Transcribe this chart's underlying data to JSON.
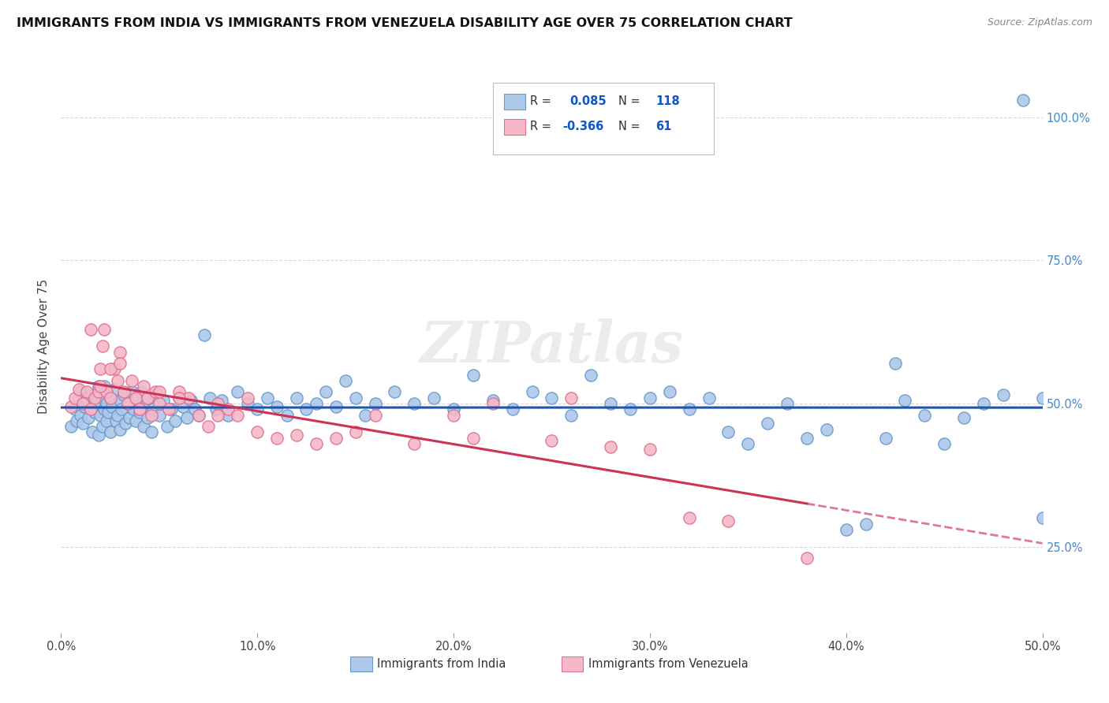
{
  "title": "IMMIGRANTS FROM INDIA VS IMMIGRANTS FROM VENEZUELA DISABILITY AGE OVER 75 CORRELATION CHART",
  "source": "Source: ZipAtlas.com",
  "ylabel": "Disability Age Over 75",
  "xlim": [
    0.0,
    0.5
  ],
  "ylim": [
    0.1,
    1.1
  ],
  "xtick_vals": [
    0.0,
    0.1,
    0.2,
    0.3,
    0.4,
    0.5
  ],
  "ytick_right_labels": [
    "25.0%",
    "50.0%",
    "75.0%",
    "100.0%"
  ],
  "ytick_right_vals": [
    0.25,
    0.5,
    0.75,
    1.0
  ],
  "india_color": "#adc8e8",
  "india_edge_color": "#6699cc",
  "venezuela_color": "#f5b8c8",
  "venezuela_edge_color": "#e07090",
  "trend_india_color": "#2255aa",
  "trend_venezuela_color": "#cc3355",
  "background_color": "#ffffff",
  "grid_color": "#d8d8d8",
  "title_fontsize": 11.5,
  "legend_R_color": "#1155cc",
  "watermark": "ZIPatlas",
  "india_x": [
    0.005,
    0.007,
    0.008,
    0.009,
    0.01,
    0.01,
    0.011,
    0.012,
    0.013,
    0.014,
    0.015,
    0.016,
    0.017,
    0.018,
    0.019,
    0.019,
    0.02,
    0.02,
    0.021,
    0.021,
    0.022,
    0.022,
    0.023,
    0.023,
    0.024,
    0.025,
    0.025,
    0.026,
    0.027,
    0.028,
    0.029,
    0.03,
    0.03,
    0.031,
    0.032,
    0.033,
    0.034,
    0.035,
    0.036,
    0.037,
    0.038,
    0.039,
    0.04,
    0.041,
    0.042,
    0.043,
    0.044,
    0.045,
    0.046,
    0.047,
    0.048,
    0.05,
    0.052,
    0.054,
    0.056,
    0.058,
    0.06,
    0.062,
    0.064,
    0.066,
    0.068,
    0.07,
    0.073,
    0.076,
    0.079,
    0.082,
    0.085,
    0.09,
    0.095,
    0.1,
    0.105,
    0.11,
    0.115,
    0.12,
    0.125,
    0.13,
    0.135,
    0.14,
    0.145,
    0.15,
    0.155,
    0.16,
    0.17,
    0.18,
    0.19,
    0.2,
    0.21,
    0.22,
    0.23,
    0.24,
    0.25,
    0.26,
    0.27,
    0.28,
    0.29,
    0.3,
    0.31,
    0.32,
    0.33,
    0.34,
    0.35,
    0.36,
    0.37,
    0.38,
    0.39,
    0.4,
    0.41,
    0.42,
    0.43,
    0.44,
    0.45,
    0.46,
    0.47,
    0.48,
    0.49,
    0.5,
    0.5,
    0.425
  ],
  "india_y": [
    0.46,
    0.49,
    0.47,
    0.51,
    0.48,
    0.52,
    0.465,
    0.495,
    0.505,
    0.475,
    0.515,
    0.45,
    0.485,
    0.5,
    0.53,
    0.445,
    0.48,
    0.52,
    0.46,
    0.51,
    0.49,
    0.53,
    0.47,
    0.5,
    0.485,
    0.51,
    0.45,
    0.495,
    0.525,
    0.47,
    0.48,
    0.505,
    0.455,
    0.49,
    0.515,
    0.465,
    0.5,
    0.475,
    0.52,
    0.49,
    0.47,
    0.51,
    0.485,
    0.52,
    0.46,
    0.495,
    0.475,
    0.51,
    0.45,
    0.49,
    0.515,
    0.48,
    0.505,
    0.46,
    0.49,
    0.47,
    0.51,
    0.495,
    0.475,
    0.505,
    0.49,
    0.48,
    0.62,
    0.51,
    0.49,
    0.505,
    0.48,
    0.52,
    0.5,
    0.49,
    0.51,
    0.495,
    0.48,
    0.51,
    0.49,
    0.5,
    0.52,
    0.495,
    0.54,
    0.51,
    0.48,
    0.5,
    0.52,
    0.5,
    0.51,
    0.49,
    0.55,
    0.505,
    0.49,
    0.52,
    0.51,
    0.48,
    0.55,
    0.5,
    0.49,
    0.51,
    0.52,
    0.49,
    0.51,
    0.45,
    0.43,
    0.465,
    0.5,
    0.44,
    0.455,
    0.28,
    0.29,
    0.44,
    0.505,
    0.48,
    0.43,
    0.475,
    0.5,
    0.515,
    1.03,
    0.51,
    0.3,
    0.57
  ],
  "venezuela_x": [
    0.005,
    0.007,
    0.009,
    0.011,
    0.013,
    0.015,
    0.017,
    0.019,
    0.02,
    0.021,
    0.022,
    0.023,
    0.025,
    0.027,
    0.029,
    0.03,
    0.032,
    0.034,
    0.036,
    0.038,
    0.04,
    0.042,
    0.044,
    0.046,
    0.048,
    0.05,
    0.055,
    0.06,
    0.065,
    0.07,
    0.075,
    0.08,
    0.085,
    0.09,
    0.095,
    0.1,
    0.11,
    0.12,
    0.13,
    0.14,
    0.15,
    0.16,
    0.18,
    0.2,
    0.21,
    0.22,
    0.25,
    0.26,
    0.28,
    0.3,
    0.32,
    0.34,
    0.38,
    0.015,
    0.02,
    0.025,
    0.03,
    0.04,
    0.05,
    0.06,
    0.08
  ],
  "venezuela_y": [
    0.495,
    0.51,
    0.525,
    0.5,
    0.52,
    0.49,
    0.51,
    0.52,
    0.56,
    0.6,
    0.63,
    0.52,
    0.51,
    0.56,
    0.54,
    0.59,
    0.52,
    0.5,
    0.54,
    0.51,
    0.49,
    0.53,
    0.51,
    0.48,
    0.52,
    0.5,
    0.49,
    0.52,
    0.51,
    0.48,
    0.46,
    0.5,
    0.49,
    0.48,
    0.51,
    0.45,
    0.44,
    0.445,
    0.43,
    0.44,
    0.45,
    0.48,
    0.43,
    0.48,
    0.44,
    0.5,
    0.435,
    0.51,
    0.425,
    0.42,
    0.3,
    0.295,
    0.23,
    0.63,
    0.53,
    0.56,
    0.57,
    0.49,
    0.52,
    0.51,
    0.48
  ]
}
